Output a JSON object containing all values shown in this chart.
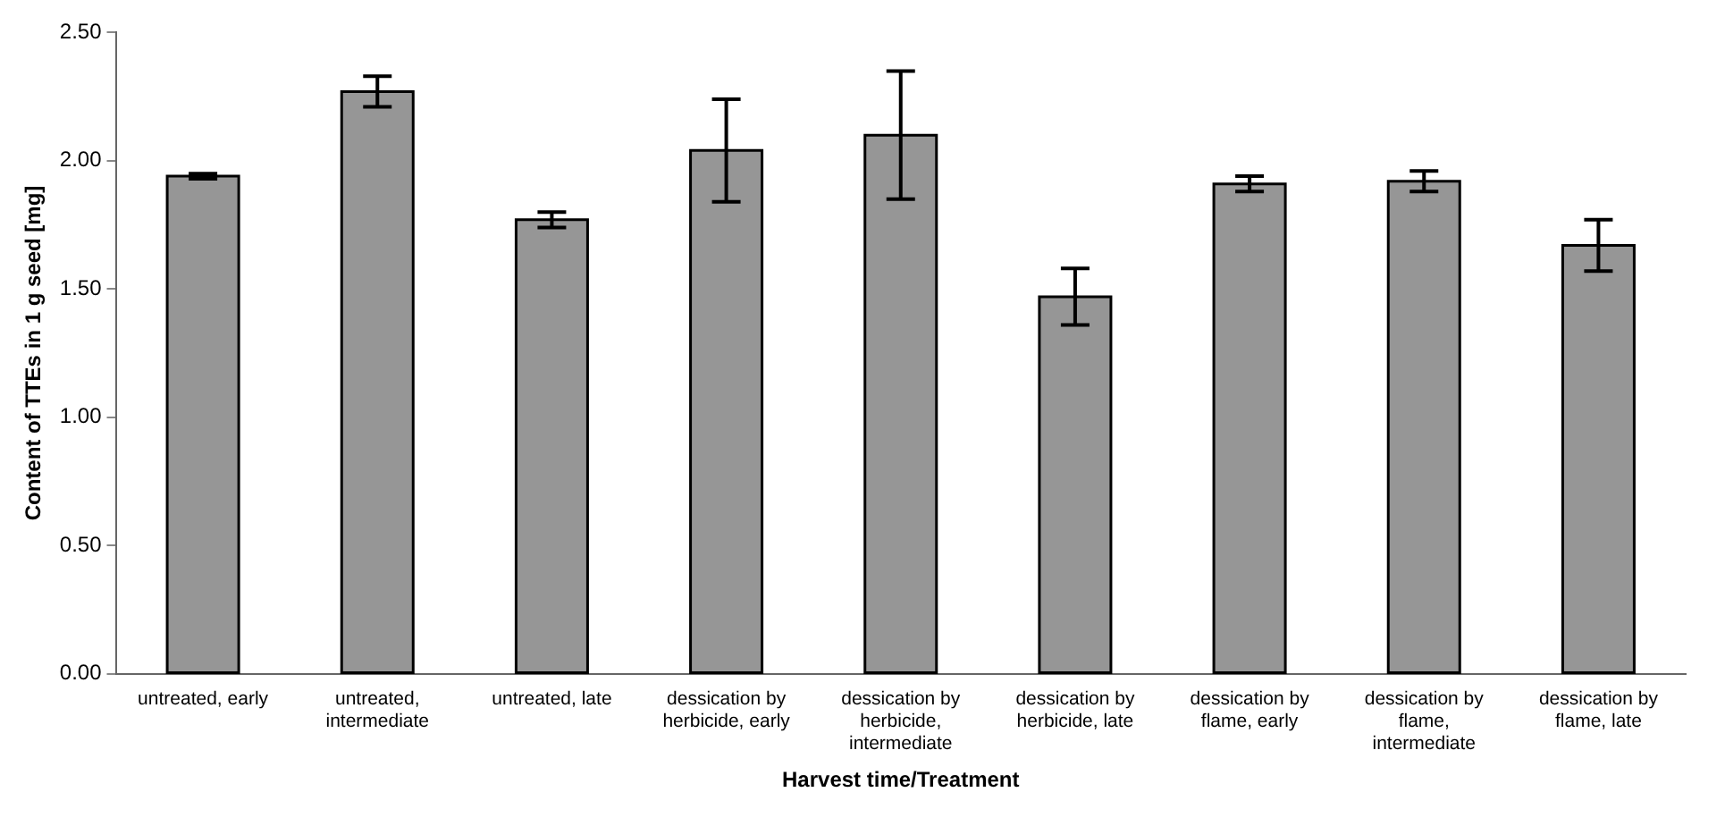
{
  "chart_data": {
    "type": "bar",
    "xlabel": "Harvest time/Treatment",
    "ylabel": "Content of TTEs in 1 g seed [mg]",
    "categories": [
      "untreated, early",
      "untreated, intermediate",
      "untreated, late",
      "dessication by herbicide, early",
      "dessication by herbicide, intermediate",
      "dessication by herbicide, late",
      "dessication by flame, early",
      "dessication by flame, intermediate",
      "dessication by flame, late"
    ],
    "values": [
      1.94,
      2.27,
      1.77,
      2.04,
      2.1,
      1.47,
      1.91,
      1.92,
      1.67
    ],
    "errors": [
      0.01,
      0.06,
      0.03,
      0.2,
      0.25,
      0.11,
      0.03,
      0.04,
      0.1
    ],
    "color": "#969696",
    "ylim": [
      0,
      2.5
    ],
    "yticks": [
      {
        "value": 0,
        "label": "0.00"
      },
      {
        "value": 0.5,
        "label": "0.50"
      },
      {
        "value": 1,
        "label": "1.00"
      },
      {
        "value": 1.5,
        "label": "1.50"
      },
      {
        "value": 2,
        "label": "2.00"
      },
      {
        "value": 2.5,
        "label": "2.50"
      }
    ],
    "grid": false,
    "legend": false
  }
}
